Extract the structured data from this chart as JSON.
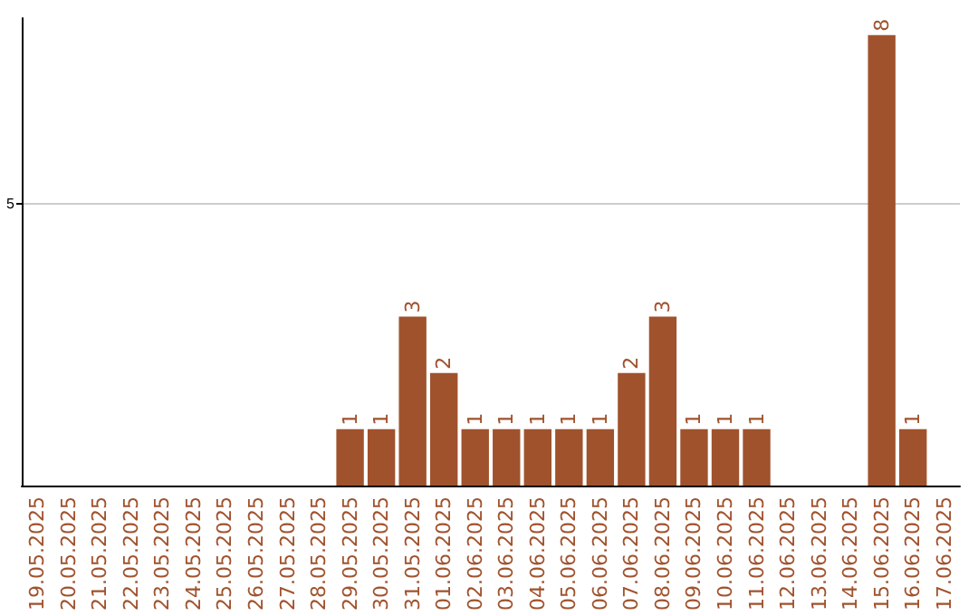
{
  "chart_data": {
    "type": "bar",
    "categories": [
      "19.05.2025",
      "20.05.2025",
      "21.05.2025",
      "22.05.2025",
      "23.05.2025",
      "24.05.2025",
      "25.05.2025",
      "26.05.2025",
      "27.05.2025",
      "28.05.2025",
      "29.05.2025",
      "30.05.2025",
      "31.05.2025",
      "01.06.2025",
      "02.06.2025",
      "03.06.2025",
      "04.06.2025",
      "05.06.2025",
      "06.06.2025",
      "07.06.2025",
      "08.06.2025",
      "09.06.2025",
      "10.06.2025",
      "11.06.2025",
      "12.06.2025",
      "13.06.2025",
      "14.06.2025",
      "15.06.2025",
      "16.06.2025",
      "17.06.2025"
    ],
    "values": [
      0,
      0,
      0,
      0,
      0,
      0,
      0,
      0,
      0,
      0,
      1,
      1,
      3,
      2,
      1,
      1,
      1,
      1,
      1,
      2,
      3,
      1,
      1,
      1,
      0,
      0,
      0,
      8,
      1,
      0
    ],
    "value_labels": [
      null,
      null,
      null,
      null,
      null,
      null,
      null,
      null,
      null,
      null,
      "1",
      "1",
      "3",
      "2",
      "1",
      "1",
      "1",
      "1",
      "1",
      "2",
      "3",
      "1",
      "1",
      "1",
      null,
      null,
      null,
      "8",
      "1",
      null
    ],
    "color": "#a0522d",
    "ylim": [
      0,
      8.3
    ],
    "yticks": [
      5
    ],
    "grid": "y"
  }
}
